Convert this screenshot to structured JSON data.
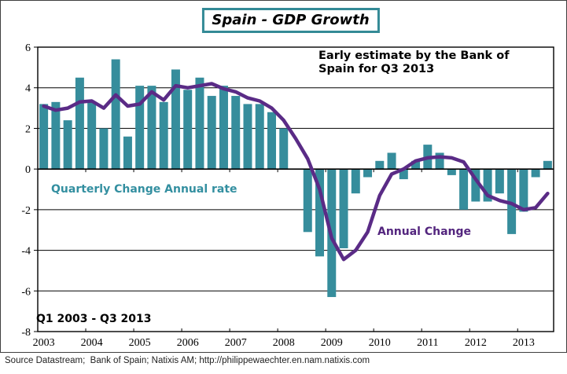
{
  "title": "Spain - GDP Growth",
  "annotations": {
    "early_estimate": "Early estimate by the Bank of Spain for Q3 2013",
    "bar_series_label": "Quarterly Change Annual rate",
    "line_series_label": "Annual Change",
    "period_label": "Q1 2003 - Q3 2013"
  },
  "footer": "Source Datastream;  Bank of Spain; Natixis AM; http://philippewaechter.en.nam.natixis.com",
  "colors": {
    "bar": "#368d9c",
    "line": "#5a2b86",
    "bar_label": "#338fa0",
    "line_label": "#53257e",
    "title_border": "#348a96",
    "axis": "#000000"
  },
  "chart_data": {
    "type": "bar",
    "subtype": "bar-and-line-combo",
    "start_quarter": "2003Q1",
    "end_quarter": "2013Q3",
    "x_tick_labels": [
      "2003",
      "2004",
      "2005",
      "2006",
      "2007",
      "2008",
      "2009",
      "2010",
      "2011",
      "2012",
      "2013"
    ],
    "y_tick_labels": [
      "6",
      "4",
      "2",
      "0",
      "-2",
      "-4",
      "-6",
      "-8"
    ],
    "ylim": [
      -8,
      6
    ],
    "ytick_step": 2,
    "grid": true,
    "legend_position": "inside-plot-text-labels",
    "series": [
      {
        "name": "Quarterly Change Annual rate",
        "type": "bar",
        "values": [
          3.2,
          3.3,
          2.4,
          4.5,
          3.3,
          2.0,
          5.4,
          1.6,
          4.1,
          4.1,
          3.3,
          4.9,
          3.9,
          4.5,
          3.6,
          4.1,
          3.6,
          3.2,
          3.2,
          2.8,
          2.0,
          0.0,
          -3.1,
          -4.3,
          -6.3,
          -3.9,
          -1.2,
          -0.4,
          0.4,
          0.8,
          -0.5,
          0.4,
          1.2,
          0.8,
          -0.3,
          -2.0,
          -1.6,
          -1.6,
          -1.2,
          -3.2,
          -2.1,
          -0.4,
          0.4
        ]
      },
      {
        "name": "Annual Change",
        "type": "line",
        "values": [
          3.1,
          2.9,
          3.0,
          3.3,
          3.35,
          3.0,
          3.65,
          3.1,
          3.2,
          3.8,
          3.4,
          4.1,
          4.0,
          4.1,
          4.2,
          3.95,
          3.8,
          3.5,
          3.35,
          3.0,
          2.4,
          1.5,
          0.5,
          -1.0,
          -3.4,
          -4.45,
          -4.0,
          -3.1,
          -1.3,
          -0.25,
          0.0,
          0.4,
          0.55,
          0.6,
          0.55,
          0.35,
          -0.5,
          -1.3,
          -1.55,
          -1.7,
          -2.0,
          -1.9,
          -1.2
        ]
      }
    ]
  }
}
